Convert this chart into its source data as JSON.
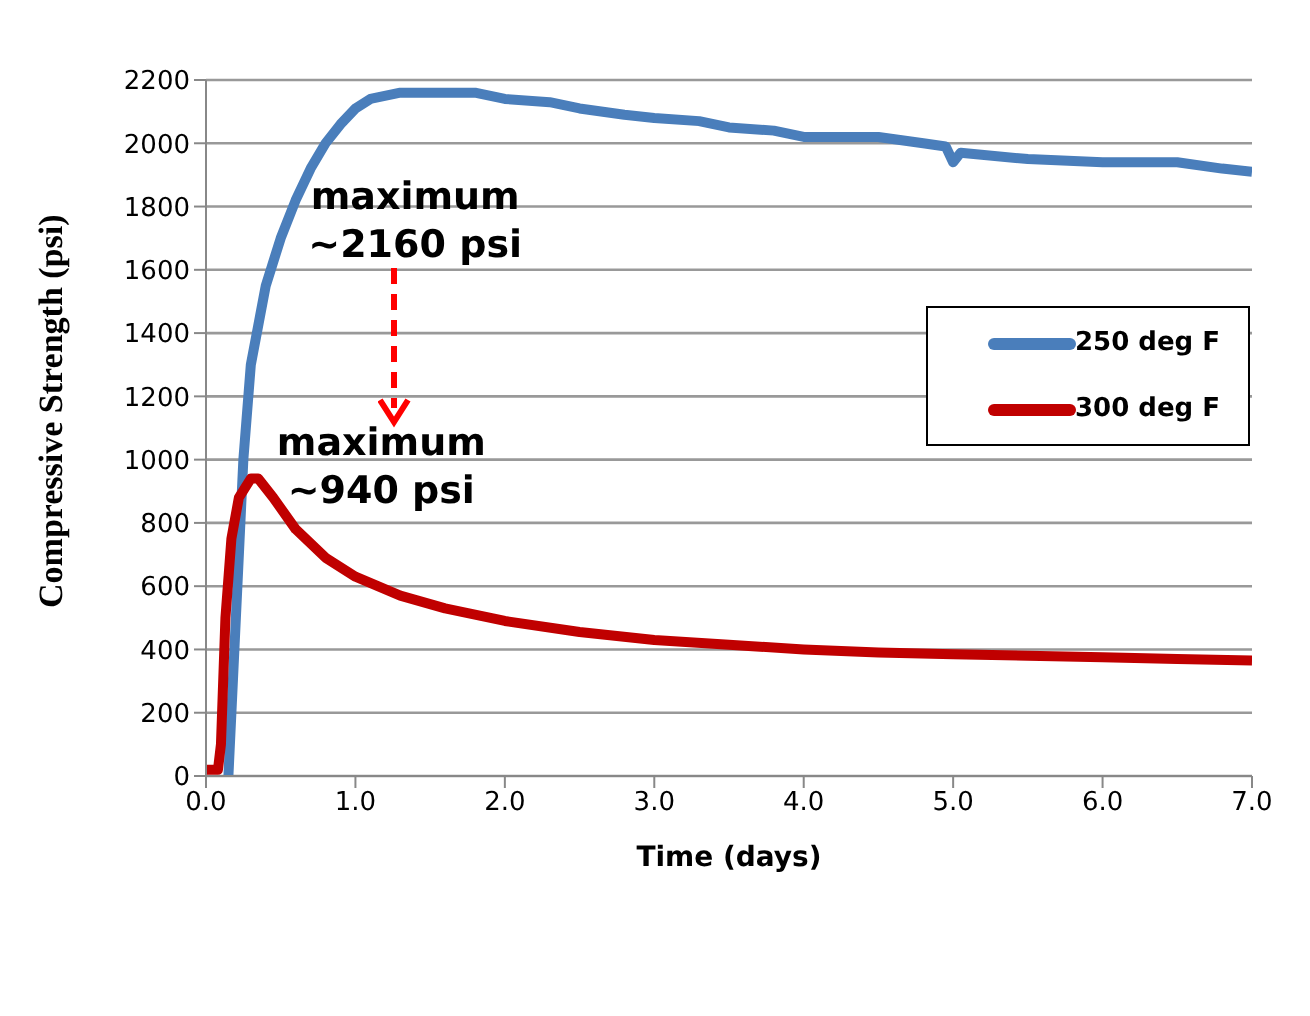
{
  "chart_data": {
    "type": "line",
    "xlabel": "Time (days)",
    "ylabel": "Compressive Strength (psi)",
    "xlim": [
      0,
      7
    ],
    "xticks": [
      {
        "value": 0,
        "label": "0.0"
      },
      {
        "value": 1,
        "label": "1.0"
      },
      {
        "value": 2,
        "label": "2.0"
      },
      {
        "value": 3,
        "label": "3.0"
      },
      {
        "value": 4,
        "label": "4.0"
      },
      {
        "value": 5,
        "label": "5.0"
      },
      {
        "value": 6,
        "label": "6.0"
      },
      {
        "value": 7,
        "label": "7.0"
      }
    ],
    "ylim": [
      0,
      2200
    ],
    "yticks": [
      0,
      200,
      400,
      600,
      800,
      1000,
      1200,
      1400,
      1600,
      1800,
      2000,
      2200
    ],
    "grid": "y",
    "legend": "right",
    "marker": "none",
    "line_style": "solid",
    "series": [
      {
        "name": "250 deg F",
        "color": "#4a7ebb",
        "x": [
          0.15,
          0.2,
          0.25,
          0.3,
          0.4,
          0.5,
          0.6,
          0.7,
          0.8,
          0.9,
          1.0,
          1.1,
          1.3,
          1.5,
          1.8,
          2.0,
          2.3,
          2.5,
          2.8,
          3.0,
          3.3,
          3.5,
          3.8,
          4.0,
          4.5,
          4.8,
          4.95,
          5.0,
          5.05,
          5.5,
          6.0,
          6.5,
          6.8,
          7.0
        ],
        "values": [
          0,
          500,
          1000,
          1300,
          1550,
          1700,
          1820,
          1920,
          2000,
          2060,
          2110,
          2140,
          2160,
          2160,
          2160,
          2140,
          2130,
          2110,
          2090,
          2080,
          2070,
          2050,
          2040,
          2020,
          2020,
          2000,
          1990,
          1940,
          1970,
          1950,
          1940,
          1940,
          1920,
          1910
        ]
      },
      {
        "name": "300 deg F",
        "color": "#c00000",
        "x": [
          0,
          0.08,
          0.1,
          0.13,
          0.17,
          0.22,
          0.3,
          0.35,
          0.45,
          0.6,
          0.8,
          1.0,
          1.3,
          1.6,
          2.0,
          2.5,
          3.0,
          3.5,
          4.0,
          4.5,
          5.0,
          5.5,
          6.0,
          6.5,
          7.0
        ],
        "values": [
          20,
          20,
          100,
          500,
          750,
          880,
          940,
          940,
          880,
          780,
          690,
          630,
          570,
          530,
          490,
          455,
          430,
          415,
          400,
          390,
          385,
          380,
          375,
          370,
          365
        ]
      }
    ],
    "annotations": [
      {
        "text": "maximum\n~2160 psi",
        "x": 1.4,
        "y": 2160
      },
      {
        "text": "maximum\n~940 psi",
        "x": 0.33,
        "y": 940
      }
    ]
  }
}
